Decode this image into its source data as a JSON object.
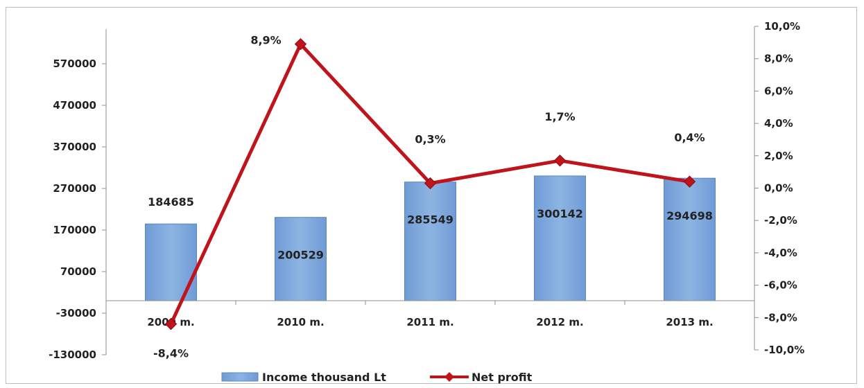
{
  "chart_data": {
    "type": "bar+line",
    "categories": [
      "2009 m.",
      "2010 m.",
      "2011 m.",
      "2012 m.",
      "2013 m."
    ],
    "series": [
      {
        "name": "Income thousand Lt",
        "type": "bar",
        "axis": "left",
        "values": [
          184685,
          200529,
          285549,
          300142,
          294698
        ],
        "labels": [
          "184685",
          "200529",
          "285549",
          "300142",
          "294698"
        ],
        "color": "#8db4e2"
      },
      {
        "name": "Net profit",
        "type": "line",
        "axis": "right",
        "values": [
          -8.4,
          8.9,
          0.3,
          1.7,
          0.4
        ],
        "labels": [
          "-8,4%",
          "8,9%",
          "0,3%",
          "1,7%",
          "0,4%"
        ],
        "color": "#c0141c"
      }
    ],
    "y_left": {
      "range": [
        -130000,
        620000
      ],
      "ticks": [
        570000,
        470000,
        370000,
        270000,
        170000,
        70000,
        -30000,
        -130000
      ],
      "tick_labels": [
        "570000",
        "470000",
        "370000",
        "270000",
        "170000",
        "70000",
        "-30000",
        "-130000"
      ]
    },
    "y_right": {
      "range": [
        -10,
        10
      ],
      "ticks": [
        10,
        8,
        6,
        4,
        2,
        0,
        -2,
        -4,
        -6,
        -8,
        -10
      ],
      "tick_labels": [
        "10,0%",
        "8,0%",
        "6,0%",
        "4,0%",
        "2,0%",
        "0,0%",
        "-2,0%",
        "-4,0%",
        "-6,0%",
        "-8,0%",
        "-10,0%"
      ]
    },
    "legend": {
      "position": "bottom",
      "entries": [
        "Income thousand Lt",
        "Net profit"
      ]
    },
    "grid": false
  }
}
